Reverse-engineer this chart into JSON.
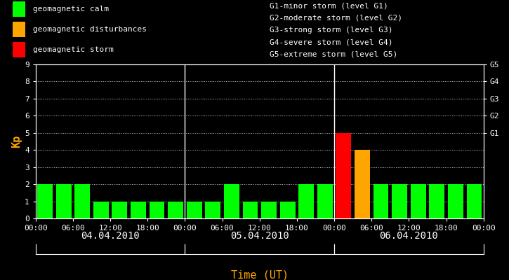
{
  "background_color": "#000000",
  "bar_width": 0.82,
  "xlabel": "Time (UT)",
  "ylabel": "Kp",
  "ylabel_color": "#ffa500",
  "xlabel_color": "#ffa500",
  "ylim": [
    0,
    9
  ],
  "yticks": [
    0,
    1,
    2,
    3,
    4,
    5,
    6,
    7,
    8,
    9
  ],
  "grid_color": "#ffffff",
  "tick_color": "#ffffff",
  "text_color": "#ffffff",
  "bar_values": [
    2,
    2,
    2,
    1,
    1,
    1,
    1,
    1,
    1,
    1,
    2,
    1,
    1,
    1,
    2,
    2,
    5,
    4,
    2,
    2,
    2,
    2,
    2,
    2
  ],
  "bar_colors": [
    "#00ff00",
    "#00ff00",
    "#00ff00",
    "#00ff00",
    "#00ff00",
    "#00ff00",
    "#00ff00",
    "#00ff00",
    "#00ff00",
    "#00ff00",
    "#00ff00",
    "#00ff00",
    "#00ff00",
    "#00ff00",
    "#00ff00",
    "#00ff00",
    "#ff0000",
    "#ffa500",
    "#00ff00",
    "#00ff00",
    "#00ff00",
    "#00ff00",
    "#00ff00",
    "#00ff00"
  ],
  "num_bars_per_day": 8,
  "xtick_labels": [
    "00:00",
    "06:00",
    "12:00",
    "18:00",
    "00:00",
    "06:00",
    "12:00",
    "18:00",
    "00:00",
    "06:00",
    "12:00",
    "18:00",
    "00:00"
  ],
  "xtick_positions": [
    0,
    2,
    4,
    6,
    8,
    10,
    12,
    14,
    16,
    18,
    20,
    22,
    24
  ],
  "day_labels": [
    "04.04.2010",
    "05.04.2010",
    "06.04.2010"
  ],
  "right_ytick_labels": [
    "G1",
    "G2",
    "G3",
    "G4",
    "G5"
  ],
  "right_ytick_values": [
    5,
    6,
    7,
    8,
    9
  ],
  "legend_items": [
    {
      "color": "#00ff00",
      "label": "geomagnetic calm"
    },
    {
      "color": "#ffa500",
      "label": "geomagnetic disturbances"
    },
    {
      "color": "#ff0000",
      "label": "geomagnetic storm"
    }
  ],
  "right_legend_lines": [
    "G1-minor storm (level G1)",
    "G2-moderate storm (level G2)",
    "G3-strong storm (level G3)",
    "G4-severe storm (level G4)",
    "G5-extreme storm (level G5)"
  ],
  "font_family": "monospace",
  "font_size": 8,
  "legend_fontsize": 8,
  "day_label_fontsize": 10,
  "ylabel_fontsize": 11,
  "xlabel_fontsize": 11
}
